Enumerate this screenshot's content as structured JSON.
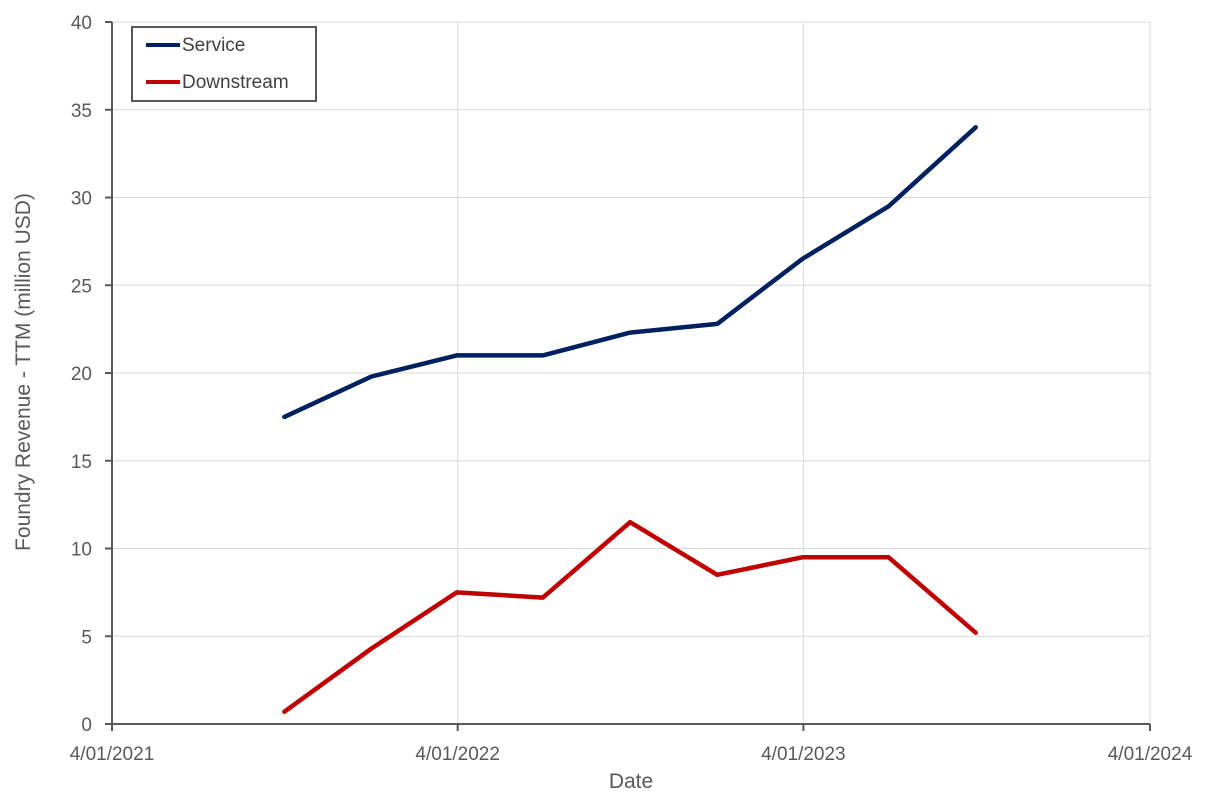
{
  "chart_data": {
    "type": "line",
    "xlabel": "Date",
    "ylabel": "Foundry Revenue - TTM (million USD)",
    "xlim": [
      "2021-04-01",
      "2024-04-01"
    ],
    "ylim": [
      0,
      40
    ],
    "x_ticks": [
      "2021-04-01",
      "2022-04-01",
      "2023-04-01",
      "2024-04-01"
    ],
    "x_tick_labels": [
      "4/01/2021",
      "4/01/2022",
      "4/01/2023",
      "4/01/2024"
    ],
    "y_ticks": [
      0,
      5,
      10,
      15,
      20,
      25,
      30,
      35,
      40
    ],
    "grid": true,
    "legend_position": "top-left",
    "x": [
      "2021-09-30",
      "2021-12-31",
      "2022-03-31",
      "2022-06-30",
      "2022-09-30",
      "2022-12-31",
      "2023-03-31",
      "2023-06-30",
      "2023-09-30"
    ],
    "series": [
      {
        "name": "Service",
        "color": "#002060",
        "values": [
          17.5,
          19.8,
          21.0,
          21.0,
          22.3,
          22.8,
          26.5,
          29.5,
          34.0
        ]
      },
      {
        "name": "Downstream",
        "color": "#C00000",
        "values": [
          0.7,
          4.3,
          7.5,
          7.2,
          11.5,
          8.5,
          9.5,
          9.5,
          5.2
        ]
      }
    ]
  }
}
